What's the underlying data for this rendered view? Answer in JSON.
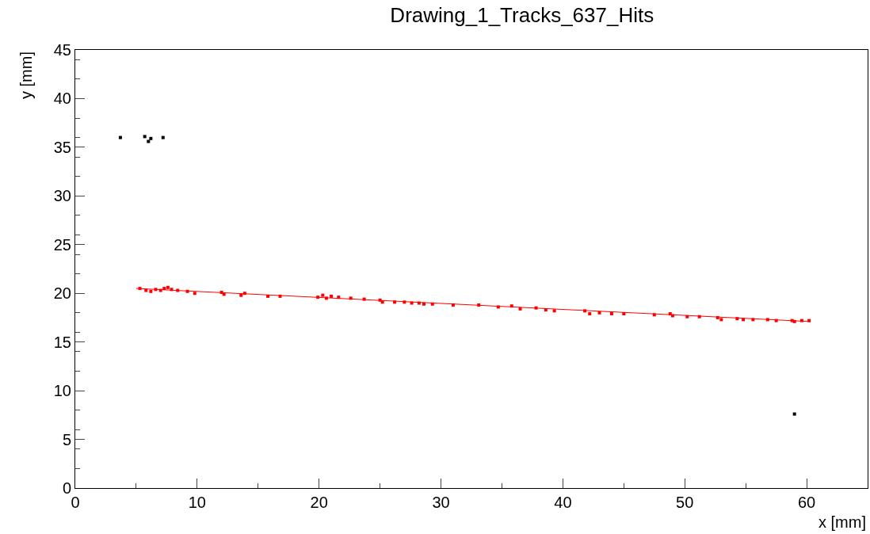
{
  "chart_data": {
    "type": "scatter",
    "title": "Drawing_1_Tracks_637_Hits",
    "xlabel": "x [mm]",
    "ylabel": "y [mm]",
    "xlim": [
      0,
      65
    ],
    "xticks": [
      0,
      10,
      20,
      30,
      40,
      50,
      60
    ],
    "ylim": [
      0,
      45
    ],
    "yticks": [
      0,
      5,
      10,
      15,
      20,
      25,
      30,
      35,
      40,
      45
    ],
    "grid": false,
    "marker": "square",
    "series": [
      {
        "color": "#ff0000",
        "x": [
          5.3,
          5.8,
          6.2,
          6.6,
          7.0,
          7.3,
          7.6,
          7.9,
          8.4,
          9.2,
          9.8,
          12.0,
          12.2,
          13.6,
          13.9,
          15.8,
          16.8,
          19.9,
          20.3,
          20.6,
          21.0,
          21.6,
          22.6,
          23.7,
          25.0,
          25.2,
          26.2,
          27.0,
          27.6,
          28.2,
          28.6,
          29.3,
          31.0,
          33.1,
          34.7,
          35.8,
          36.5,
          37.8,
          38.6,
          39.3,
          41.8,
          42.2,
          43.0,
          44.0,
          45.0,
          47.5,
          48.8,
          49.0,
          50.2,
          51.2,
          52.7,
          53.0,
          54.3,
          54.8,
          55.6,
          56.8,
          57.5,
          58.8,
          59.0,
          59.6,
          60.2
        ],
        "values": [
          20.5,
          20.3,
          20.2,
          20.4,
          20.3,
          20.5,
          20.6,
          20.4,
          20.3,
          20.2,
          20.0,
          20.1,
          19.9,
          19.8,
          20.0,
          19.7,
          19.7,
          19.6,
          19.8,
          19.5,
          19.7,
          19.6,
          19.5,
          19.4,
          19.3,
          19.1,
          19.1,
          19.1,
          19.0,
          19.0,
          18.9,
          18.9,
          18.8,
          18.8,
          18.6,
          18.7,
          18.4,
          18.5,
          18.3,
          18.2,
          18.2,
          17.9,
          18.0,
          17.9,
          17.9,
          17.8,
          17.9,
          17.7,
          17.6,
          17.6,
          17.5,
          17.3,
          17.4,
          17.3,
          17.3,
          17.3,
          17.2,
          17.2,
          17.1,
          17.2,
          17.2
        ]
      },
      {
        "color": "#000000",
        "x": [
          3.7,
          5.7,
          6.0,
          6.2,
          7.2,
          59.0
        ],
        "values": [
          36.0,
          36.1,
          35.6,
          35.9,
          36.0,
          7.6
        ]
      },
      {
        "type": "line",
        "color": "#ff0000",
        "marker": "none",
        "x": [
          5.0,
          60.3
        ],
        "values": [
          20.5,
          17.1
        ]
      }
    ]
  }
}
